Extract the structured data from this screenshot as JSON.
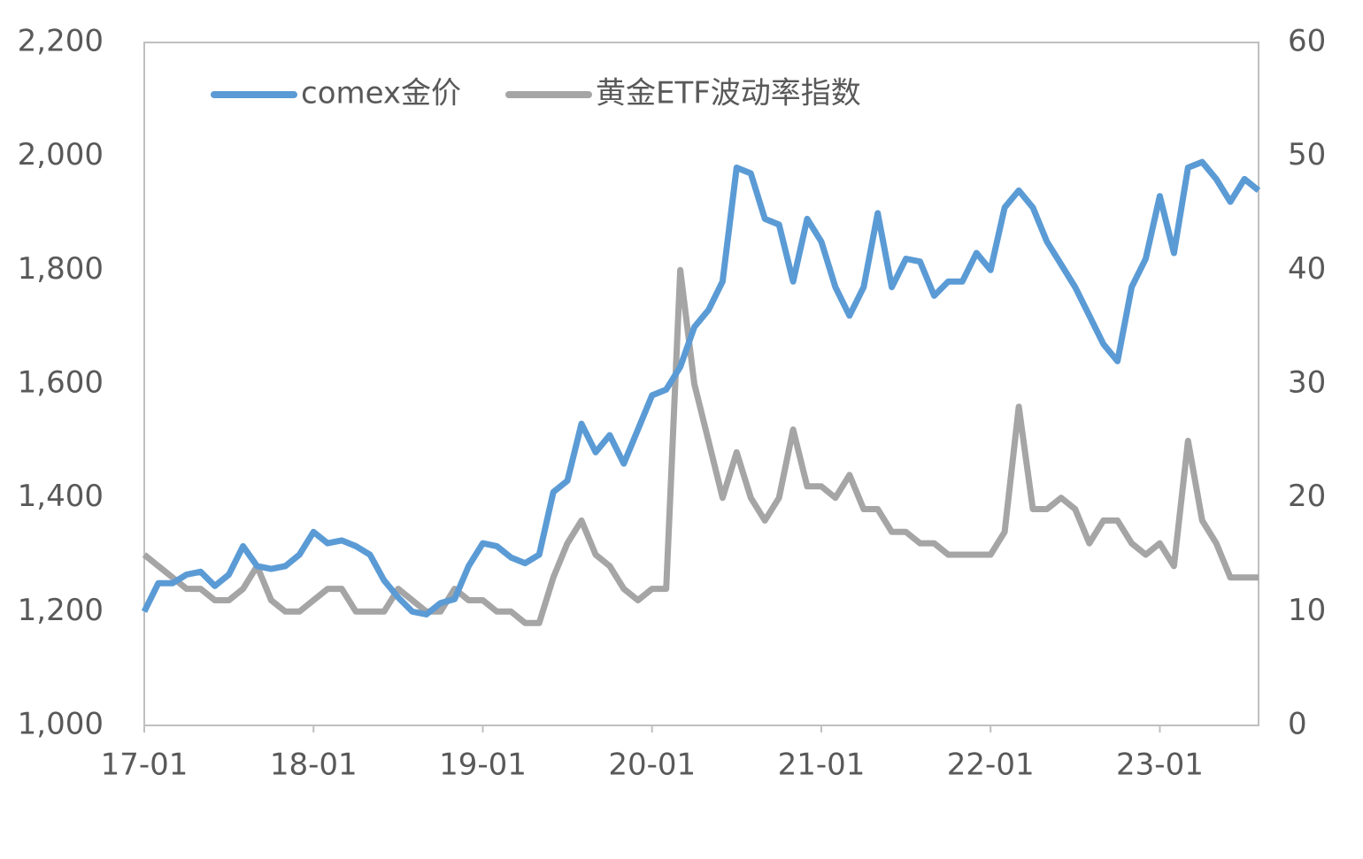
{
  "chart_data": {
    "type": "line",
    "categories": [
      "17-01",
      null,
      null,
      null,
      null,
      null,
      null,
      null,
      null,
      null,
      null,
      null,
      "18-01",
      null,
      null,
      null,
      null,
      null,
      null,
      null,
      null,
      null,
      null,
      null,
      "19-01",
      null,
      null,
      null,
      null,
      null,
      null,
      null,
      null,
      null,
      null,
      null,
      "20-01",
      null,
      null,
      null,
      null,
      null,
      null,
      null,
      null,
      null,
      null,
      null,
      "21-01",
      null,
      null,
      null,
      null,
      null,
      null,
      null,
      null,
      null,
      null,
      null,
      "22-01",
      null,
      null,
      null,
      null,
      null,
      null,
      null,
      null,
      null,
      null,
      null,
      "23-01",
      null,
      null,
      null,
      null,
      null,
      null,
      null
    ],
    "series": [
      {
        "name": "comex金价",
        "color": "#5b9bd5",
        "values": [
          1200,
          1250,
          1250,
          1265,
          1270,
          1245,
          1265,
          1315,
          1280,
          1275,
          1280,
          1300,
          1340,
          1320,
          1325,
          1315,
          1300,
          1255,
          1225,
          1200,
          1195,
          1215,
          1222,
          1280,
          1320,
          1315,
          1295,
          1285,
          1300,
          1410,
          1430,
          1530,
          1480,
          1510,
          1460,
          1520,
          1580,
          1590,
          1630,
          1700,
          1730,
          1780,
          1980,
          1970,
          1890,
          1880,
          1780,
          1890,
          1850,
          1770,
          1720,
          1770,
          1900,
          1770,
          1820,
          1815,
          1755,
          1780,
          1780,
          1830,
          1800,
          1910,
          1940,
          1910,
          1850,
          1810,
          1770,
          1720,
          1670,
          1640,
          1770,
          1820,
          1930,
          1830,
          1980,
          1990,
          1960,
          1920,
          1960,
          1940
        ]
      },
      {
        "name": "黄金ETF波动率指数",
        "color": "#a5a5a5",
        "axis": "y2",
        "values": [
          15,
          14,
          13,
          12,
          12,
          11,
          11,
          12,
          14,
          11,
          10,
          10,
          11,
          12,
          12,
          10,
          10,
          10,
          12,
          11,
          10,
          10,
          12,
          11,
          11,
          10,
          10,
          9,
          9,
          13,
          16,
          18,
          15,
          14,
          12,
          11,
          12,
          12,
          40,
          30,
          25,
          20,
          24,
          20,
          18,
          20,
          26,
          21,
          21,
          20,
          22,
          19,
          19,
          17,
          17,
          16,
          16,
          15,
          15,
          15,
          15,
          17,
          28,
          19,
          19,
          20,
          19,
          16,
          18,
          18,
          16,
          15,
          16,
          14,
          25,
          18,
          16,
          13,
          13,
          13
        ]
      }
    ],
    "ylim": [
      1000,
      2200
    ],
    "yticks": [
      {
        "value": 1000,
        "label": "1,000"
      },
      {
        "value": 1200,
        "label": "1,200"
      },
      {
        "value": 1400,
        "label": "1,400"
      },
      {
        "value": 1600,
        "label": "1,600"
      },
      {
        "value": 1800,
        "label": "1,800"
      },
      {
        "value": 2000,
        "label": "2,000"
      },
      {
        "value": 2200,
        "label": "2,200"
      }
    ],
    "y2lim": [
      0,
      60
    ],
    "y2ticks": [
      0,
      10,
      20,
      30,
      40,
      50,
      60
    ],
    "legend": "top"
  }
}
